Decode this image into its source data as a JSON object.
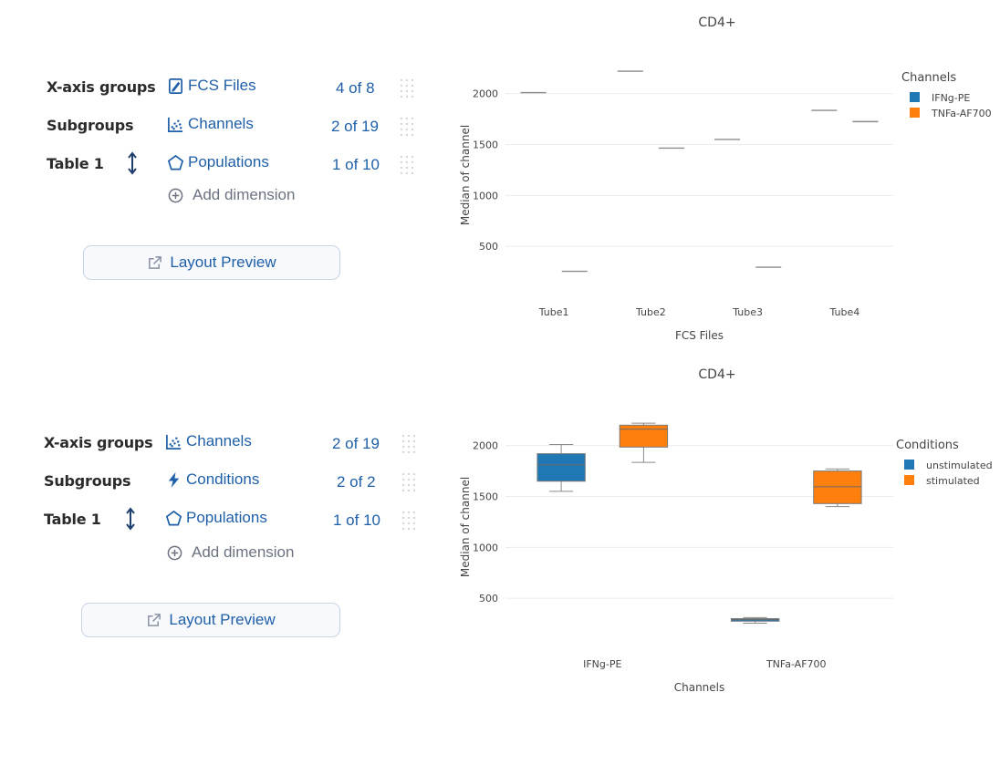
{
  "panels": [
    {
      "rows": [
        {
          "label": "X-axis groups",
          "dim": "FCS Files",
          "icon": "file-edit-icon",
          "count": "4 of 8"
        },
        {
          "label": "Subgroups",
          "dim": "Channels",
          "icon": "scatter-plot-icon",
          "count": "2 of 19"
        },
        {
          "label": "Table 1",
          "dim": "Populations",
          "icon": "pentagon-icon",
          "count": "1 of 10"
        }
      ],
      "add_dimension": "Add dimension",
      "preview_button": "Layout Preview"
    },
    {
      "rows": [
        {
          "label": "X-axis groups",
          "dim": "Channels",
          "icon": "scatter-plot-icon",
          "count": "2 of 19"
        },
        {
          "label": "Subgroups",
          "dim": "Conditions",
          "icon": "lightning-icon",
          "count": "2 of 2"
        },
        {
          "label": "Table 1",
          "dim": "Populations",
          "icon": "pentagon-icon",
          "count": "1 of 10"
        }
      ],
      "add_dimension": "Add dimension",
      "preview_button": "Layout Preview"
    }
  ],
  "chart_data": [
    {
      "type": "box",
      "title": "CD4+",
      "xlabel": "FCS Files",
      "ylabel": "Median of channel",
      "categories": [
        "Tube1",
        "Tube2",
        "Tube3",
        "Tube4"
      ],
      "ylim": [
        0,
        2400
      ],
      "yticks": [
        500,
        1000,
        1500,
        2000
      ],
      "grid": true,
      "legend_title": "Channels",
      "legend_position": "top-right",
      "series": [
        {
          "name": "IFNg-PE",
          "color": "#1f77b4",
          "values": [
            2010,
            2220,
            1550,
            1835
          ]
        },
        {
          "name": "TNFa-AF700",
          "color": "#ff7f0e",
          "values": [
            255,
            1465,
            295,
            1725
          ]
        }
      ]
    },
    {
      "type": "box",
      "title": "CD4+",
      "xlabel": "Channels",
      "ylabel": "Median of channel",
      "categories": [
        "IFNg-PE",
        "TNFa-AF700"
      ],
      "ylim": [
        0,
        2400
      ],
      "yticks": [
        500,
        1000,
        1500,
        2000
      ],
      "grid": true,
      "legend_title": "Conditions",
      "legend_position": "top-right",
      "series": [
        {
          "name": "unstimulated",
          "color": "#1f77b4",
          "boxes": [
            {
              "min": 1550,
              "q1": 1650,
              "median": 1810,
              "q3": 1920,
              "max": 2010
            },
            {
              "min": 255,
              "q1": 275,
              "median": 290,
              "q3": 300,
              "max": 310
            }
          ]
        },
        {
          "name": "stimulated",
          "color": "#ff7f0e",
          "boxes": [
            {
              "min": 1835,
              "q1": 1985,
              "median": 2160,
              "q3": 2200,
              "max": 2220
            },
            {
              "min": 1400,
              "q1": 1430,
              "median": 1595,
              "q3": 1750,
              "max": 1770
            }
          ]
        }
      ]
    }
  ]
}
